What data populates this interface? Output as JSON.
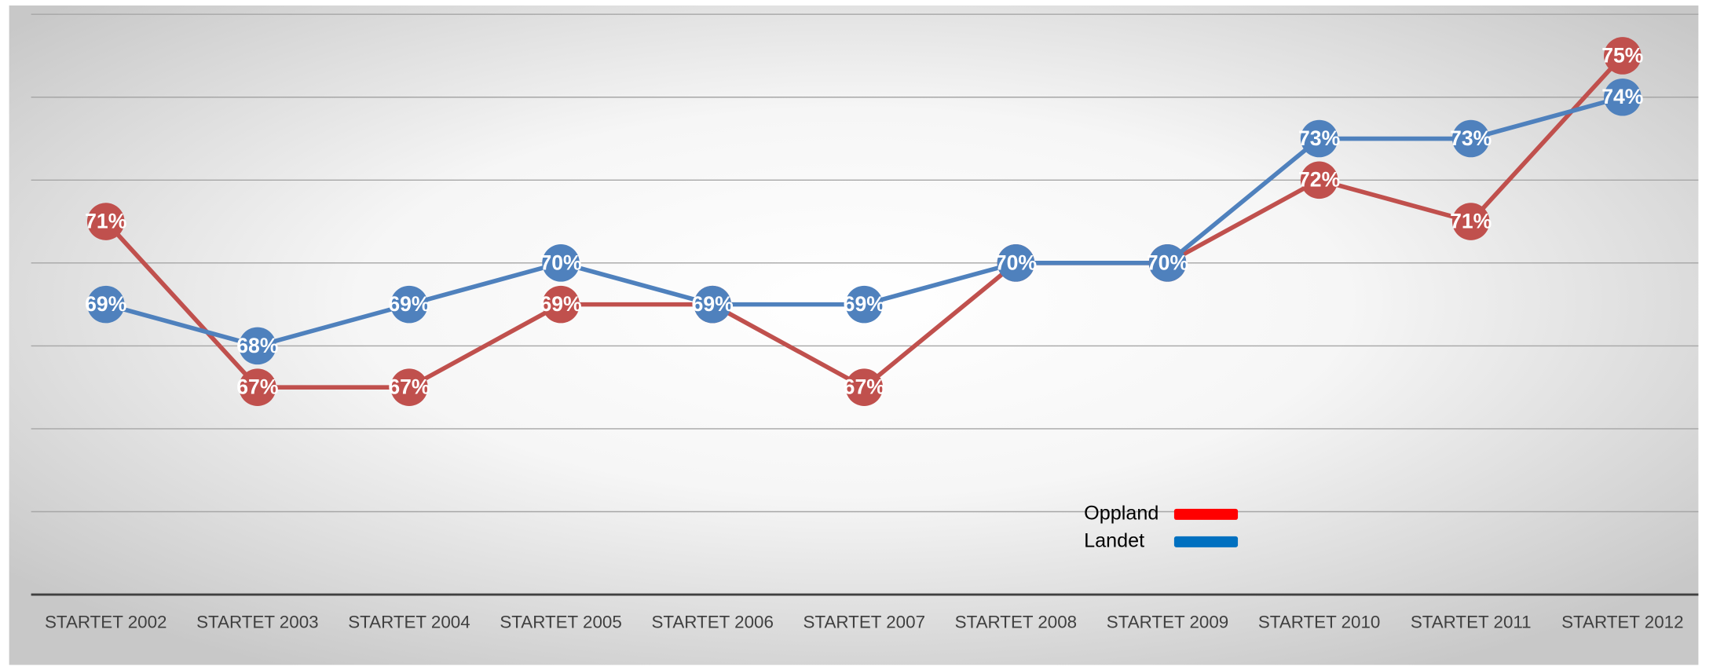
{
  "chart_data": {
    "type": "line",
    "categories": [
      "STARTET 2002",
      "STARTET 2003",
      "STARTET 2004",
      "STARTET 2005",
      "STARTET 2006",
      "STARTET 2007",
      "STARTET 2008",
      "STARTET 2009",
      "STARTET 2010",
      "STARTET 2011",
      "STARTET 2012"
    ],
    "series": [
      {
        "name": "Oppland",
        "color": "#c0504d",
        "legend_color": "#ff0000",
        "values": [
          71,
          67,
          67,
          69,
          69,
          67,
          70,
          70,
          72,
          71,
          75
        ],
        "value_labels": [
          "71%",
          "67%",
          "67%",
          "69%",
          "69%",
          "67%",
          "70%",
          "70%",
          "72%",
          "71%",
          "75%"
        ]
      },
      {
        "name": "Landet",
        "color": "#4f81bd",
        "legend_color": "#0070c0",
        "values": [
          69,
          68,
          69,
          70,
          69,
          69,
          70,
          70,
          73,
          73,
          74
        ],
        "value_labels": [
          "69%",
          "68%",
          "69%",
          "70%",
          "69%",
          "69%",
          "70%",
          "70%",
          "73%",
          "73%",
          "74%"
        ]
      }
    ],
    "ylim": [
      62,
      76
    ],
    "yticks": [
      62,
      64,
      66,
      68,
      70,
      72,
      74,
      76
    ],
    "grid": true
  }
}
